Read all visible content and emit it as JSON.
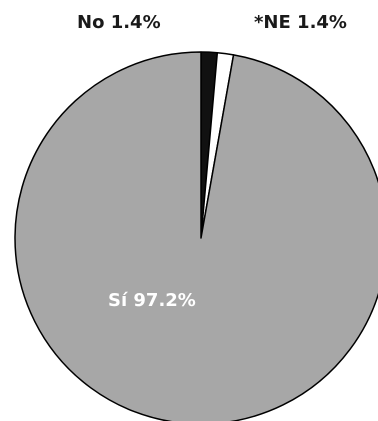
{
  "chart_data": {
    "type": "pie",
    "slices": [
      {
        "label": "No 1.4%",
        "value": 1.4,
        "color": "#111111"
      },
      {
        "label": "*NE 1.4%",
        "value": 1.4,
        "color": "#ffffff"
      },
      {
        "label": "Sí 97.2%",
        "value": 97.2,
        "color": "#a7a7a7"
      }
    ],
    "start_angle_deg": 0,
    "direction": "clockwise",
    "slice_stroke": "#000000",
    "legend": "none"
  }
}
